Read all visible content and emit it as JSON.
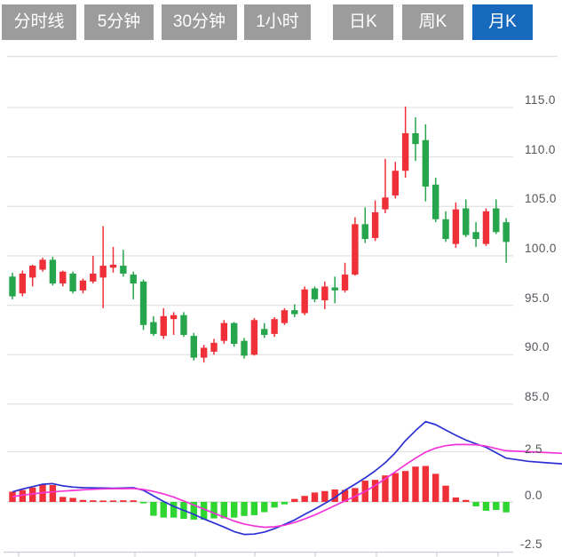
{
  "toolbar": {
    "tabs": [
      {
        "label": "分时线",
        "active": false
      },
      {
        "label": "5分钟",
        "active": false
      },
      {
        "label": "30分钟",
        "active": false
      },
      {
        "label": "1小时",
        "active": false
      },
      {
        "label": "日K",
        "active": false
      },
      {
        "label": "周K",
        "active": false
      },
      {
        "label": "月K",
        "active": true
      }
    ],
    "active_color": "#1769bd",
    "inactive_color": "#9c9c9c"
  },
  "chart_data": {
    "type": "candlestick+macd",
    "period": "月K",
    "grid": true,
    "legend_position": "none",
    "price_axis": {
      "side": "right",
      "ylim": [
        85.0,
        115.0
      ],
      "labels": [
        "115.0",
        "110.0",
        "105.0",
        "100.0",
        "95.0",
        "90.0",
        "85.0"
      ],
      "gridline_prices": [
        115,
        110,
        105,
        100,
        95,
        90,
        85
      ]
    },
    "candles_ohlc": [
      [
        97.9,
        98.3,
        95.6,
        95.9
      ],
      [
        96.2,
        98.5,
        95.9,
        98.2
      ],
      [
        97.8,
        99.1,
        96.9,
        99.0
      ],
      [
        98.6,
        99.8,
        98.4,
        99.6
      ],
      [
        99.6,
        99.9,
        97.0,
        97.2
      ],
      [
        97.2,
        98.5,
        96.9,
        98.4
      ],
      [
        98.2,
        98.4,
        96.2,
        96.4
      ],
      [
        96.5,
        97.7,
        96.2,
        97.5
      ],
      [
        97.4,
        100.0,
        97.2,
        98.2
      ],
      [
        97.8,
        103.0,
        94.7,
        99.0
      ],
      [
        98.8,
        100.9,
        98.3,
        99.1
      ],
      [
        99.0,
        100.6,
        97.9,
        98.2
      ],
      [
        98.1,
        98.4,
        95.6,
        97.2
      ],
      [
        97.4,
        97.6,
        92.5,
        93.0
      ],
      [
        93.3,
        93.9,
        91.9,
        92.1
      ],
      [
        91.9,
        94.7,
        91.6,
        93.9
      ],
      [
        93.6,
        94.3,
        92.0,
        94.0
      ],
      [
        94.0,
        94.3,
        91.8,
        92.0
      ],
      [
        91.9,
        92.2,
        89.4,
        89.7
      ],
      [
        89.7,
        91.0,
        89.2,
        90.7
      ],
      [
        90.3,
        91.6,
        90.0,
        91.2
      ],
      [
        91.4,
        93.5,
        91.1,
        93.2
      ],
      [
        93.2,
        93.3,
        90.8,
        91.1
      ],
      [
        91.4,
        91.7,
        89.6,
        89.9
      ],
      [
        90.0,
        93.7,
        89.9,
        93.5
      ],
      [
        92.6,
        93.2,
        91.7,
        92.0
      ],
      [
        92.1,
        93.8,
        91.8,
        93.6
      ],
      [
        93.2,
        94.7,
        93.0,
        94.5
      ],
      [
        94.5,
        95.1,
        93.8,
        94.1
      ],
      [
        94.2,
        96.9,
        94.0,
        96.6
      ],
      [
        96.7,
        96.9,
        95.3,
        95.6
      ],
      [
        95.5,
        97.4,
        94.6,
        96.9
      ],
      [
        96.8,
        97.9,
        95.2,
        96.5
      ],
      [
        96.5,
        99.3,
        96.3,
        98.1
      ],
      [
        98.1,
        103.9,
        98.0,
        103.2
      ],
      [
        103.2,
        104.9,
        101.3,
        101.7
      ],
      [
        101.8,
        105.6,
        101.5,
        104.4
      ],
      [
        104.7,
        109.8,
        104.3,
        105.9
      ],
      [
        106.1,
        109.5,
        105.8,
        108.6
      ],
      [
        108.6,
        115.1,
        107.9,
        112.4
      ],
      [
        112.4,
        114.0,
        109.6,
        111.3
      ],
      [
        111.7,
        113.3,
        105.5,
        107.0
      ],
      [
        107.2,
        107.9,
        103.4,
        103.7
      ],
      [
        103.7,
        104.5,
        101.4,
        101.7
      ],
      [
        101.2,
        105.4,
        100.8,
        104.7
      ],
      [
        104.8,
        105.7,
        101.9,
        102.1
      ],
      [
        102.4,
        103.4,
        100.9,
        101.7
      ],
      [
        101.2,
        104.8,
        101.0,
        104.5
      ],
      [
        104.8,
        105.7,
        102.2,
        102.4
      ],
      [
        103.4,
        103.8,
        99.3,
        101.4
      ]
    ],
    "macd": {
      "axis_labels": [
        "2.5",
        "0.0",
        "-2.5"
      ],
      "gridline_values": [
        2.5,
        0,
        -2.5
      ],
      "ylim": [
        -2.5,
        5.0
      ],
      "bars": [
        0.51,
        0.59,
        0.72,
        0.85,
        0.84,
        0.25,
        0.2,
        0.1,
        0.08,
        0.07,
        0.06,
        0.08,
        0.08,
        -0.07,
        -0.69,
        -0.78,
        -0.78,
        -0.84,
        -0.88,
        -0.88,
        -0.82,
        -0.82,
        -0.78,
        -0.7,
        -0.66,
        -0.51,
        -0.28,
        -0.12,
        0.15,
        0.3,
        0.47,
        0.54,
        0.62,
        0.6,
        0.69,
        1.06,
        1.1,
        1.32,
        1.44,
        1.54,
        1.76,
        1.79,
        1.4,
        0.81,
        0.22,
        0.1,
        -0.22,
        -0.44,
        -0.4,
        -0.52
      ],
      "dif": [
        0.5,
        0.64,
        0.76,
        0.88,
        0.91,
        0.8,
        0.74,
        0.71,
        0.7,
        0.69,
        0.68,
        0.69,
        0.71,
        0.58,
        0.3,
        0.02,
        -0.22,
        -0.42,
        -0.62,
        -0.85,
        -1.05,
        -1.25,
        -1.48,
        -1.62,
        -1.6,
        -1.5,
        -1.33,
        -1.12,
        -0.9,
        -0.62,
        -0.36,
        -0.08,
        0.22,
        0.58,
        0.88,
        1.2,
        1.55,
        1.95,
        2.45,
        3.05,
        3.55,
        4.0,
        3.85,
        3.58,
        3.32,
        3.08,
        2.9,
        2.72,
        2.45,
        2.18
      ],
      "dif_overhang": [
        2.02,
        1.95,
        1.9
      ],
      "dea": [
        0.26,
        0.34,
        0.4,
        0.46,
        0.5,
        0.54,
        0.57,
        0.6,
        0.63,
        0.65,
        0.66,
        0.66,
        0.67,
        0.62,
        0.52,
        0.4,
        0.24,
        0.05,
        -0.16,
        -0.36,
        -0.56,
        -0.76,
        -0.95,
        -1.1,
        -1.2,
        -1.26,
        -1.24,
        -1.16,
        -1.02,
        -0.85,
        -0.65,
        -0.42,
        -0.18,
        0.05,
        0.28,
        0.52,
        0.82,
        1.15,
        1.5,
        1.85,
        2.18,
        2.48,
        2.68,
        2.8,
        2.86,
        2.86,
        2.85,
        2.78,
        2.66,
        2.55
      ],
      "dea_overhang": [
        2.5,
        2.46,
        2.42
      ],
      "x_ticks": [
        21,
        84,
        152,
        220,
        287,
        355,
        424,
        492,
        561
      ]
    },
    "colors": {
      "up": "#f03038",
      "down": "#27a54c",
      "macd_bar_up": "#f03038",
      "macd_bar_down": "#2fd531",
      "dif_line": "#2b31d3",
      "dea_line": "#f335d8",
      "grid": "#e3e3e5",
      "zero_line": "#d9d9db",
      "axis_line": "#c9ced6",
      "label": "#54565c"
    }
  }
}
